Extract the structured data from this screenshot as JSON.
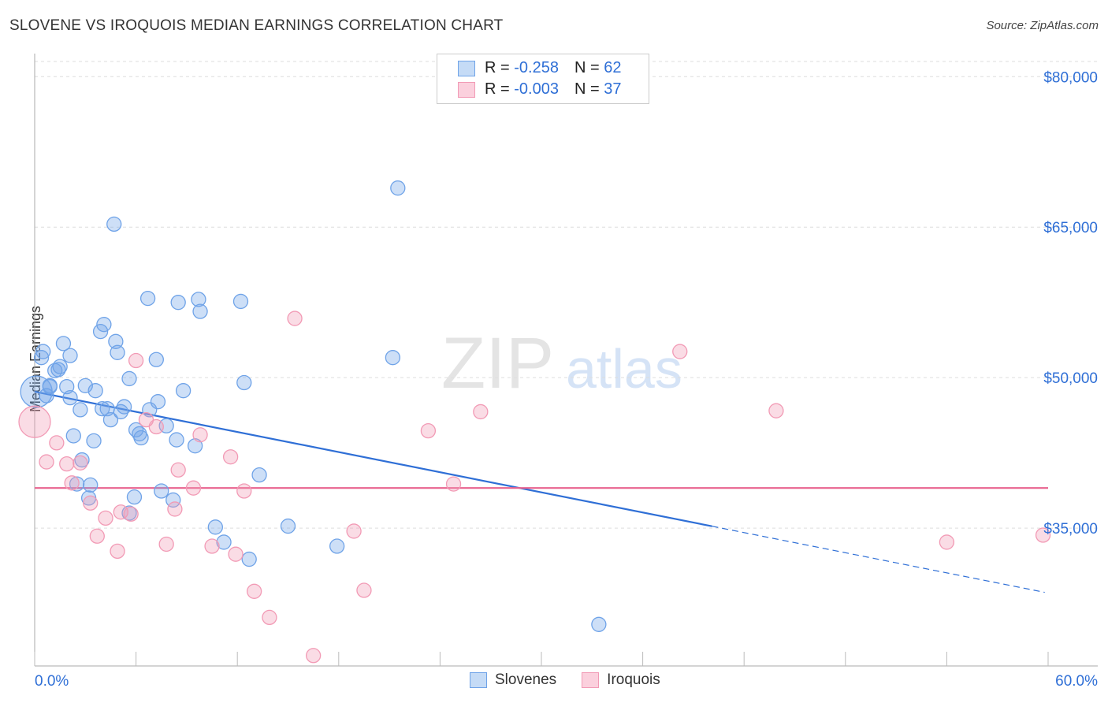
{
  "chart_data": {
    "type": "scatter",
    "title": "SLOVENE VS IROQUOIS MEDIAN EARNINGS CORRELATION CHART",
    "source": "Source: ZipAtlas.com",
    "xlabel": "",
    "ylabel": "Median Earnings",
    "xlim": [
      0,
      60
    ],
    "ylim": [
      21260,
      82300
    ],
    "x_tick_labels": [
      "0.0%",
      "60.0%"
    ],
    "y_ticks": [
      80000,
      65000,
      50000,
      35000
    ],
    "y_tick_labels": [
      "$80,000",
      "$65,000",
      "$50,000",
      "$35,000"
    ],
    "grid": true,
    "legend_placement": "bottom",
    "stats": [
      {
        "r_label": "R = ",
        "r": "-0.258",
        "n_label": "N = ",
        "n": "62"
      },
      {
        "r_label": "R = ",
        "r": "-0.003",
        "n_label": "N = ",
        "n": "37"
      }
    ],
    "series": [
      {
        "name": "Slovenes",
        "color": "#6fa3e8",
        "line_color": "#2f6fd6",
        "trend": {
          "x0": 0,
          "y0": 48600,
          "x_solid_end": 40.1,
          "x1": 59.8,
          "y1": 28600
        },
        "points": [
          [
            4.7,
            65300
          ],
          [
            21.5,
            68900
          ],
          [
            6.7,
            57900
          ],
          [
            8.5,
            57500
          ],
          [
            9.7,
            57800
          ],
          [
            9.8,
            56600
          ],
          [
            12.2,
            57600
          ],
          [
            4.1,
            55300
          ],
          [
            3.9,
            54600
          ],
          [
            4.8,
            53600
          ],
          [
            4.9,
            52500
          ],
          [
            0.5,
            52600
          ],
          [
            0.4,
            52000
          ],
          [
            1.7,
            53400
          ],
          [
            2.1,
            52200
          ],
          [
            1.5,
            51100
          ],
          [
            1.2,
            50700
          ],
          [
            1.4,
            50800
          ],
          [
            21.2,
            52000
          ],
          [
            7.2,
            51800
          ],
          [
            5.6,
            49900
          ],
          [
            12.4,
            49500
          ],
          [
            3.0,
            49200
          ],
          [
            3.6,
            48700
          ],
          [
            8.8,
            48700
          ],
          [
            0.9,
            49100
          ],
          [
            0.7,
            48200
          ],
          [
            1.9,
            49100
          ],
          [
            2.1,
            48000
          ],
          [
            0.1,
            48600
          ],
          [
            7.3,
            47600
          ],
          [
            6.8,
            46800
          ],
          [
            5.3,
            47100
          ],
          [
            4.0,
            46900
          ],
          [
            4.3,
            46900
          ],
          [
            5.1,
            46600
          ],
          [
            2.7,
            46800
          ],
          [
            4.5,
            45800
          ],
          [
            7.8,
            45200
          ],
          [
            6.0,
            44800
          ],
          [
            6.2,
            44400
          ],
          [
            6.3,
            44000
          ],
          [
            2.3,
            44200
          ],
          [
            3.5,
            43700
          ],
          [
            8.4,
            43800
          ],
          [
            9.5,
            43200
          ],
          [
            2.8,
            41800
          ],
          [
            13.3,
            40300
          ],
          [
            2.5,
            39400
          ],
          [
            3.3,
            39300
          ],
          [
            7.5,
            38700
          ],
          [
            5.9,
            38100
          ],
          [
            3.2,
            38000
          ],
          [
            8.2,
            37800
          ],
          [
            5.6,
            36500
          ],
          [
            10.7,
            35100
          ],
          [
            15.0,
            35200
          ],
          [
            11.2,
            33600
          ],
          [
            17.9,
            33200
          ],
          [
            12.7,
            31900
          ],
          [
            33.4,
            25400
          ],
          [
            0.9,
            49200
          ]
        ]
      },
      {
        "name": "Iroquois",
        "color": "#f29ab5",
        "line_color": "#e8628e",
        "trend": {
          "x0": 0,
          "y0": 39000,
          "x_solid_end": 60,
          "x1": 60,
          "y1": 39000
        },
        "points": [
          [
            0,
            45600
          ],
          [
            15.4,
            55900
          ],
          [
            38.2,
            52600
          ],
          [
            6.0,
            51700
          ],
          [
            6.6,
            45800
          ],
          [
            7.2,
            45100
          ],
          [
            9.8,
            44300
          ],
          [
            26.4,
            46600
          ],
          [
            43.9,
            46700
          ],
          [
            23.3,
            44700
          ],
          [
            1.3,
            43500
          ],
          [
            0.7,
            41600
          ],
          [
            1.9,
            41400
          ],
          [
            2.7,
            41500
          ],
          [
            11.6,
            42100
          ],
          [
            8.5,
            40800
          ],
          [
            2.2,
            39500
          ],
          [
            9.4,
            39000
          ],
          [
            12.4,
            38700
          ],
          [
            24.8,
            39400
          ],
          [
            3.3,
            37500
          ],
          [
            5.1,
            36600
          ],
          [
            5.7,
            36400
          ],
          [
            4.2,
            36000
          ],
          [
            8.3,
            36900
          ],
          [
            3.7,
            34200
          ],
          [
            7.8,
            33400
          ],
          [
            10.5,
            33200
          ],
          [
            11.9,
            32400
          ],
          [
            18.9,
            34700
          ],
          [
            4.9,
            32700
          ],
          [
            54.0,
            33600
          ],
          [
            59.7,
            34300
          ],
          [
            13.0,
            28700
          ],
          [
            19.5,
            28800
          ],
          [
            13.9,
            26100
          ],
          [
            16.5,
            22300
          ]
        ]
      }
    ]
  }
}
